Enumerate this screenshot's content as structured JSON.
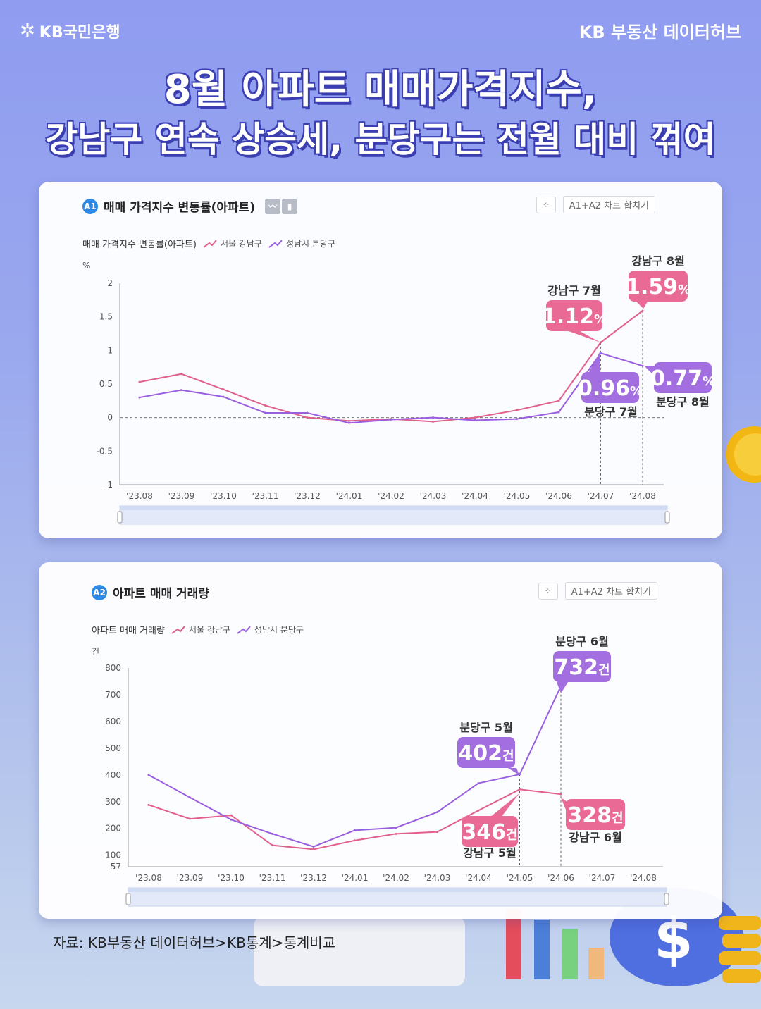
{
  "header": {
    "logo_text": "KB국민은행",
    "brand": "KB 부동산 데이터허브"
  },
  "title": {
    "line1": "8월 아파트 매매가격지수,",
    "line2": "강남구 연속 상승세, 분당구는 전월 대비 꺾여"
  },
  "colors": {
    "gangnam": "#e0608a",
    "bundang": "#9a5ee0",
    "gangnam_box": "#e86a95",
    "bundang_box": "#a36ee0"
  },
  "toolbar": {
    "merge_label": "차트 합치기",
    "merge_tag": "A1+A2"
  },
  "chart1": {
    "badge": "A1",
    "title": "매매 가격지수 변동률(아파트)",
    "legend_title": "매매 가격지수 변동률(아파트)",
    "unit": "%",
    "watermark": [
      "KB부동산",
      "데이터허브"
    ]
  },
  "chart2": {
    "badge": "A2",
    "title": "아파트 매매 거래량",
    "legend_title": "아파트 매매 거래량",
    "unit": "건"
  },
  "chart_data": [
    {
      "type": "line",
      "categories": [
        "'23.08",
        "'23.09",
        "'23.10",
        "'23.11",
        "'23.12",
        "'24.01",
        "'24.02",
        "'24.03",
        "'24.04",
        "'24.05",
        "'24.06",
        "'24.07",
        "'24.08"
      ],
      "series": [
        {
          "name": "서울 강남구",
          "values": [
            0.53,
            0.65,
            0.42,
            0.18,
            0.0,
            -0.05,
            -0.02,
            -0.06,
            0.0,
            0.11,
            0.25,
            1.12,
            1.59
          ]
        },
        {
          "name": "성남시 분당구",
          "values": [
            0.3,
            0.41,
            0.31,
            0.07,
            0.07,
            -0.08,
            -0.03,
            0.0,
            -0.04,
            -0.02,
            0.08,
            0.96,
            0.77
          ]
        }
      ],
      "ylim": [
        -1,
        2
      ],
      "yticks": [
        "2",
        "1.5",
        "1",
        "0.5",
        "0",
        "-0.5",
        "-1"
      ],
      "ylabel": "%",
      "annotations": [
        {
          "series": 0,
          "index": 11,
          "label": "강남구 7월",
          "value_num": "1.12",
          "value_unit": "%"
        },
        {
          "series": 0,
          "index": 12,
          "label": "강남구 8월",
          "value_num": "1.59",
          "value_unit": "%"
        },
        {
          "series": 1,
          "index": 11,
          "label": "분당구 7월",
          "value_num": "0.96",
          "value_unit": "%"
        },
        {
          "series": 1,
          "index": 12,
          "label": "분당구 8월",
          "value_num": "0.77",
          "value_unit": "%"
        }
      ]
    },
    {
      "type": "line",
      "categories": [
        "'23.08",
        "'23.09",
        "'23.10",
        "'23.11",
        "'23.12",
        "'24.01",
        "'24.02",
        "'24.03",
        "'24.04",
        "'24.05",
        "'24.06",
        "'24.07",
        "'24.08"
      ],
      "series": [
        {
          "name": "서울 강남구",
          "values": [
            288,
            236,
            249,
            137,
            122,
            155,
            180,
            187,
            267,
            346,
            328,
            null,
            null
          ]
        },
        {
          "name": "성남시 분당구",
          "values": [
            400,
            316,
            233,
            180,
            132,
            193,
            203,
            261,
            369,
            402,
            732,
            null,
            null
          ]
        }
      ],
      "ylim": [
        57,
        800
      ],
      "yticks": [
        "800",
        "700",
        "600",
        "500",
        "400",
        "300",
        "200",
        "100",
        "57"
      ],
      "ylabel": "건",
      "annotations": [
        {
          "series": 0,
          "index": 9,
          "label": "강남구 5월",
          "value_num": "346",
          "value_unit": "건"
        },
        {
          "series": 0,
          "index": 10,
          "label": "강남구 6월",
          "value_num": "328",
          "value_unit": "건"
        },
        {
          "series": 1,
          "index": 9,
          "label": "분당구 5월",
          "value_num": "402",
          "value_unit": "건"
        },
        {
          "series": 1,
          "index": 10,
          "label": "분당구 6월",
          "value_num": "732",
          "value_unit": "건"
        }
      ]
    }
  ],
  "source": "자료: KB부동산 데이터허브>KB통계>통계비교"
}
